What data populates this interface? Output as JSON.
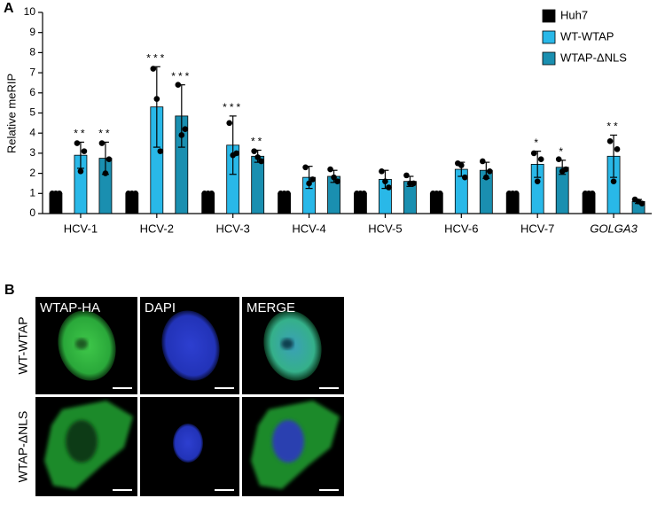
{
  "chart_data": {
    "type": "bar",
    "label": "A",
    "ylabel": "Relative meRIP",
    "categories": [
      "HCV-1",
      "HCV-2",
      "HCV-3",
      "HCV-4",
      "HCV-5",
      "HCV-6",
      "HCV-7",
      "GOLGA3"
    ],
    "category_styles": [
      "normal",
      "normal",
      "normal",
      "normal",
      "normal",
      "normal",
      "normal",
      "italic"
    ],
    "ylim": [
      0,
      10
    ],
    "yticks": [
      0,
      1,
      2,
      3,
      4,
      5,
      6,
      7,
      8,
      9,
      10
    ],
    "legend": "top-right",
    "series": [
      {
        "name": "Huh7",
        "color": "#000000",
        "values": [
          1,
          1,
          1,
          1,
          1,
          1,
          1,
          1
        ],
        "errors": [
          0.03,
          0.03,
          0.03,
          0.03,
          0.03,
          0.03,
          0.03,
          0.03
        ],
        "points": [
          [
            1,
            1,
            1
          ],
          [
            1,
            1,
            1
          ],
          [
            1,
            1,
            1
          ],
          [
            1,
            1,
            1
          ],
          [
            1,
            1,
            1
          ],
          [
            1,
            1,
            1
          ],
          [
            1,
            1,
            1
          ],
          [
            1,
            1,
            1
          ]
        ],
        "annotations": [
          null,
          null,
          null,
          null,
          null,
          null,
          null,
          null
        ]
      },
      {
        "name": "WT-WTAP",
        "color": "#29b8e8",
        "values": [
          2.9,
          5.3,
          3.4,
          1.8,
          1.7,
          2.2,
          2.45,
          2.85
        ],
        "errors": [
          0.65,
          2.0,
          1.45,
          0.55,
          0.45,
          0.35,
          0.65,
          1.05
        ],
        "points": [
          [
            3.5,
            2.1,
            3.1
          ],
          [
            7.2,
            5.7,
            3.1
          ],
          [
            4.5,
            2.9,
            3.0
          ],
          [
            2.3,
            1.5,
            1.7
          ],
          [
            2.1,
            1.6,
            1.3
          ],
          [
            2.5,
            2.4,
            1.8
          ],
          [
            3.0,
            1.6,
            2.7
          ],
          [
            3.6,
            1.6,
            3.2
          ]
        ],
        "annotations": [
          "**",
          "***",
          "***",
          null,
          null,
          null,
          "*",
          "**"
        ]
      },
      {
        "name": "WTAP-ΔNLS",
        "color": "#1a8fb0",
        "values": [
          2.75,
          4.85,
          2.85,
          1.85,
          1.6,
          2.15,
          2.3,
          0.6
        ],
        "errors": [
          0.8,
          1.55,
          0.3,
          0.3,
          0.25,
          0.4,
          0.35,
          0.1
        ],
        "points": [
          [
            3.5,
            2.0,
            2.7
          ],
          [
            6.4,
            3.9,
            4.2
          ],
          [
            3.1,
            2.8,
            2.6
          ],
          [
            2.2,
            1.8,
            1.6
          ],
          [
            1.9,
            1.5,
            1.5
          ],
          [
            2.6,
            1.8,
            2.1
          ],
          [
            2.7,
            2.1,
            2.2
          ],
          [
            0.7,
            0.6,
            0.5
          ]
        ],
        "annotations": [
          "**",
          "***",
          "**",
          null,
          null,
          null,
          "*",
          null
        ]
      }
    ]
  },
  "panel_b": {
    "label": "B",
    "columns": [
      "WTAP-HA",
      "DAPI",
      "MERGE"
    ],
    "rows": [
      "WT-WTAP",
      "WTAP-ΔNLS"
    ]
  }
}
